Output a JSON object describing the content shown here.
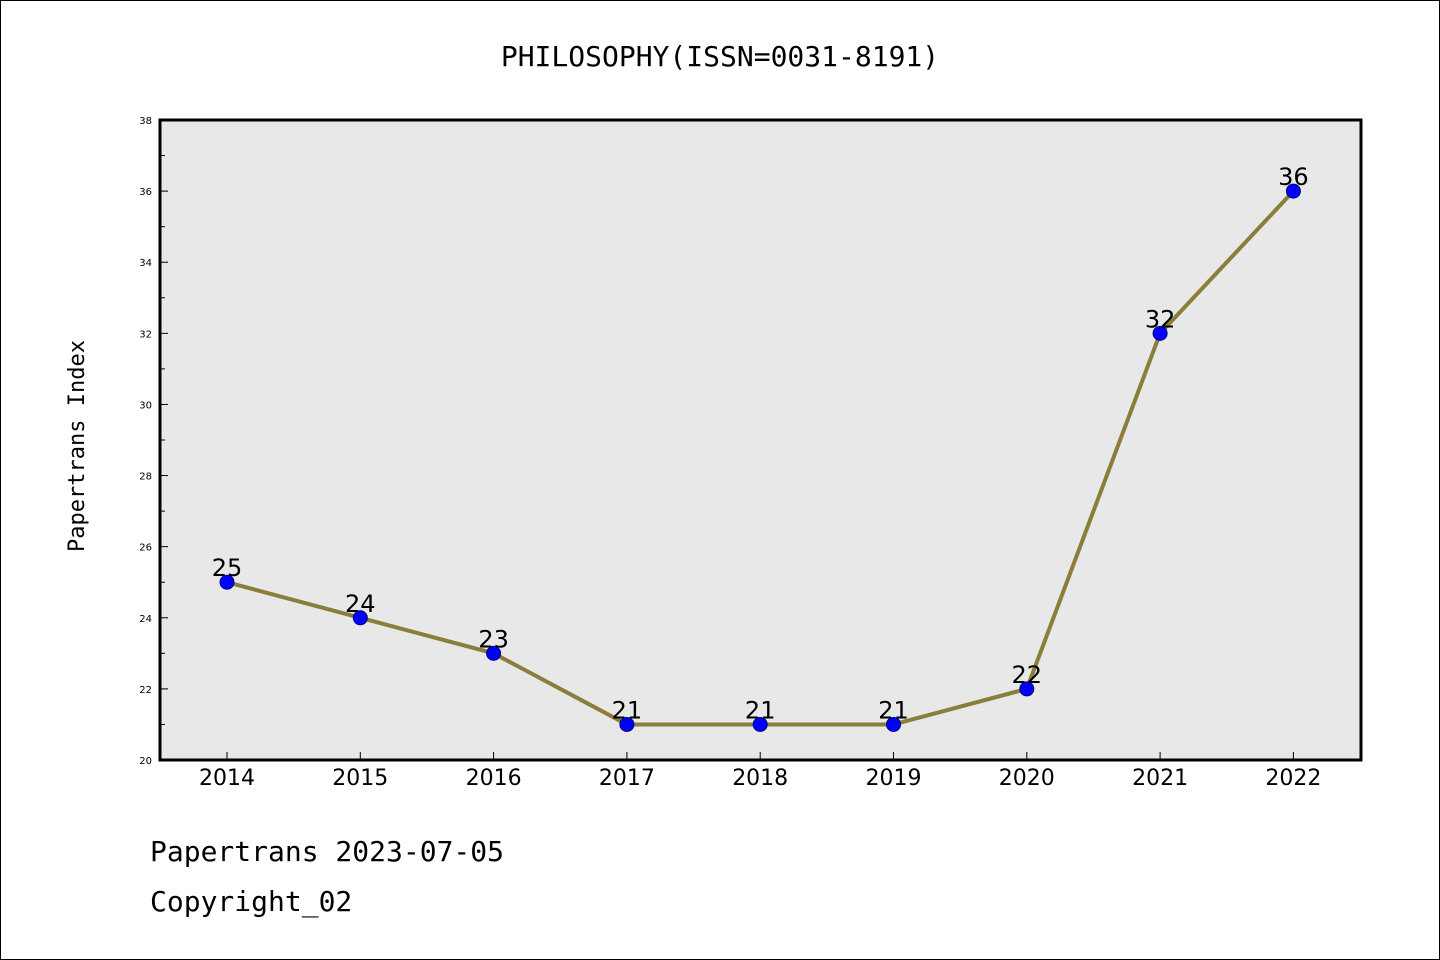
{
  "chart_data": {
    "type": "line",
    "title": "PHILOSOPHY(ISSN=0031-8191)",
    "xlabel": "",
    "ylabel": "Papertrans Index",
    "categories": [
      "2014",
      "2015",
      "2016",
      "2017",
      "2018",
      "2019",
      "2020",
      "2021",
      "2022"
    ],
    "series": [
      {
        "values": [
          25,
          24,
          23,
          21,
          21,
          21,
          22,
          32,
          36
        ]
      }
    ],
    "data_labels": [
      "25",
      "24",
      "23",
      "21",
      "21",
      "21",
      "22",
      "32",
      "36"
    ],
    "ylim": [
      20,
      38
    ],
    "y_ticks": [
      20,
      22,
      24,
      26,
      28,
      30,
      32,
      34,
      36,
      38
    ],
    "y_tick_labels": [
      "20",
      "22",
      "24",
      "26",
      "28",
      "30",
      "32",
      "34",
      "36",
      "38"
    ],
    "grid": false,
    "colors": {
      "line": "#8B7D3A",
      "marker": "#0000FF",
      "marker_edge": "#000080",
      "plot_background": "#E8E8E8"
    }
  },
  "footer": {
    "line1": "Papertrans 2023-07-05",
    "line2": "Copyright_02"
  }
}
